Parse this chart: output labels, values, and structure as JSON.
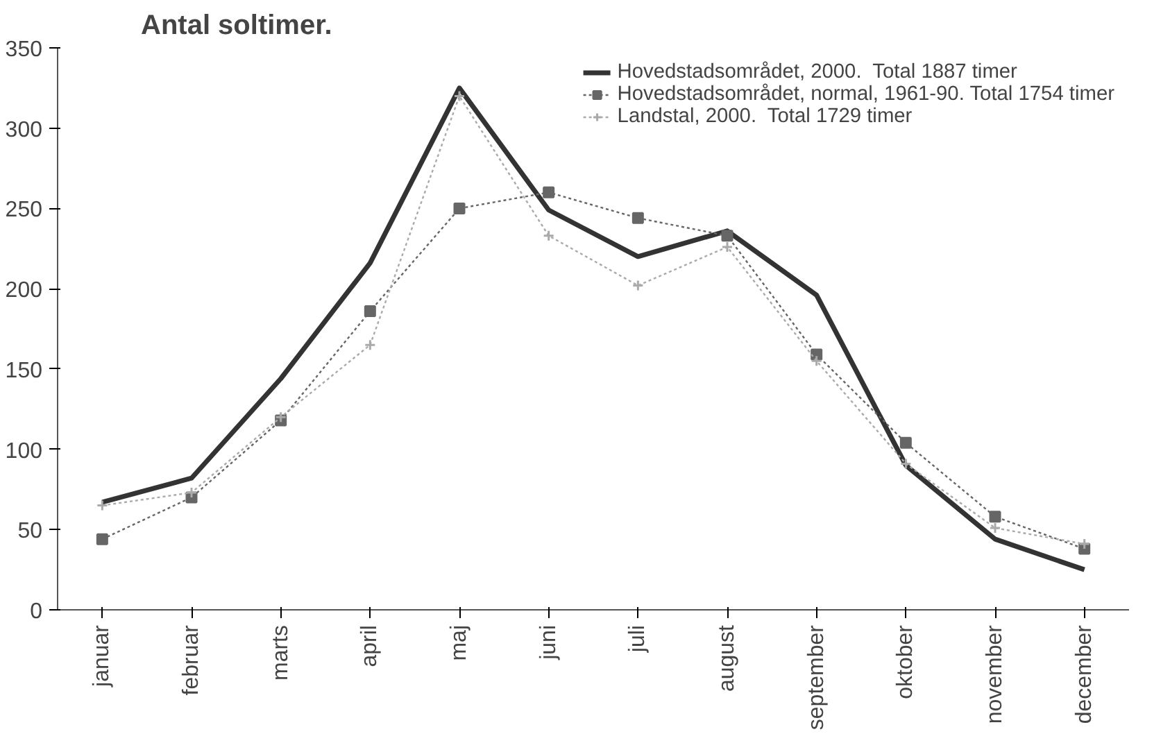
{
  "chart_data": {
    "type": "line",
    "title": "Antal soltimer.",
    "categories": [
      "januar",
      "februar",
      "marts",
      "april",
      "maj",
      "juni",
      "juli",
      "august",
      "september",
      "oktober",
      "november",
      "december"
    ],
    "series": [
      {
        "name": "Hovedstadsområdet, 2000.  Total 1887 timer",
        "color": "#333333",
        "line_style": "solid",
        "marker": "none",
        "values": [
          67,
          82,
          144,
          216,
          325,
          249,
          220,
          236,
          196,
          90,
          44,
          25
        ]
      },
      {
        "name": "Hovedstadsområdet, normal, 1961-90. Total 1754 timer",
        "color": "#666666",
        "line_style": "dotted",
        "marker": "square",
        "values": [
          44,
          70,
          118,
          186,
          250,
          260,
          244,
          233,
          159,
          104,
          58,
          38
        ]
      },
      {
        "name": "Landstal, 2000.  Total 1729 timer",
        "color": "#aaaaaa",
        "line_style": "dotted",
        "marker": "cross",
        "values": [
          65,
          73,
          120,
          165,
          320,
          233,
          202,
          226,
          155,
          91,
          51,
          41
        ]
      }
    ],
    "ylim": [
      0,
      350
    ],
    "yticks": [
      0,
      50,
      100,
      150,
      200,
      250,
      300,
      350
    ],
    "grid": false,
    "legend": "top right"
  }
}
